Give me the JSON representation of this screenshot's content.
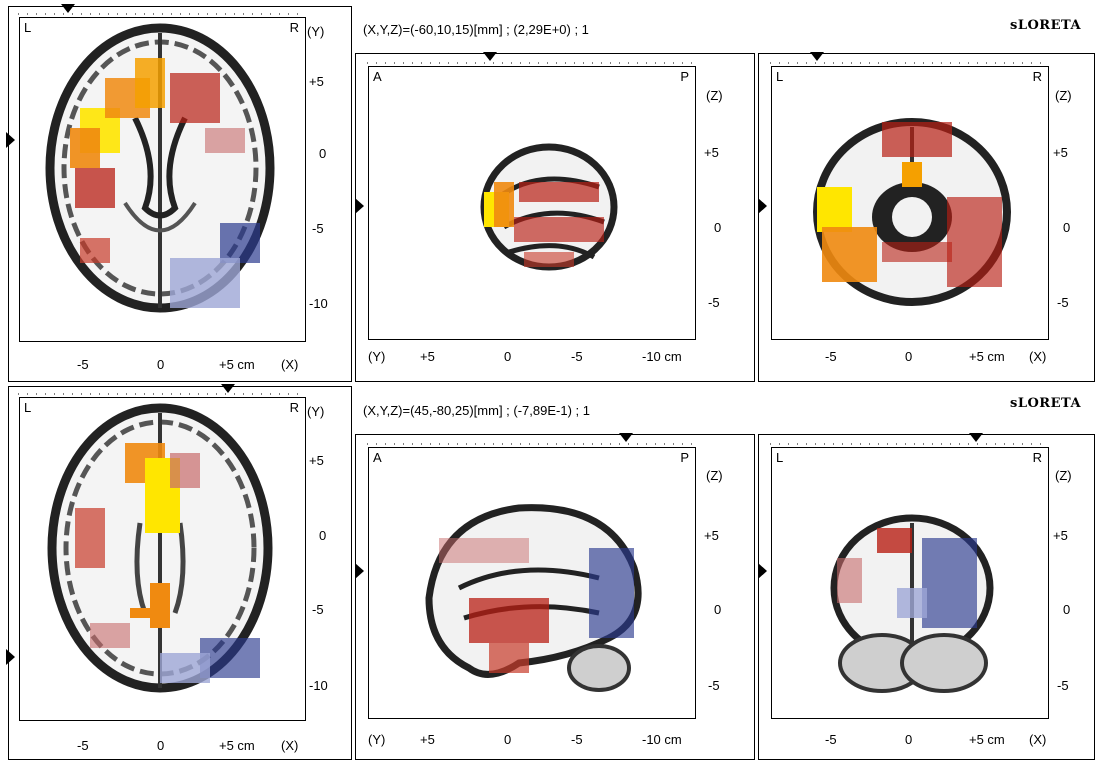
{
  "rows": [
    {
      "coord_readout": "(X,Y,Z)=(-60,10,15)[mm]  ;  (2,29E+0)  ;  1",
      "brand": "sLORETA",
      "axial": {
        "left": "L",
        "right": "R",
        "axis_y": "(Y)",
        "yticks": [
          "+5",
          "0",
          "-5",
          "-10"
        ],
        "xticks": [
          "-5",
          "0",
          "+5 cm"
        ],
        "axis_x": "(X)"
      },
      "sagittal": {
        "left": "A",
        "right": "P",
        "axis_z": "(Z)",
        "zticks": [
          "+5",
          "0",
          "-5"
        ],
        "axis_y": "(Y)",
        "xticks": [
          "+5",
          "0",
          "-5",
          "-10 cm"
        ]
      },
      "coronal": {
        "left": "L",
        "right": "R",
        "axis_z": "(Z)",
        "zticks": [
          "+5",
          "0",
          "-5"
        ],
        "xticks": [
          "-5",
          "0",
          "+5 cm"
        ],
        "axis_x": "(X)"
      }
    },
    {
      "coord_readout": "(X,Y,Z)=(45,-80,25)[mm]  ;  (-7,89E-1)  ;  1",
      "brand": "sLORETA",
      "axial": {
        "left": "L",
        "right": "R",
        "axis_y": "(Y)",
        "yticks": [
          "+5",
          "0",
          "-5",
          "-10"
        ],
        "xticks": [
          "-5",
          "0",
          "+5 cm"
        ],
        "axis_x": "(X)"
      },
      "sagittal": {
        "left": "A",
        "right": "P",
        "axis_z": "(Z)",
        "zticks": [
          "+5",
          "0",
          "-5"
        ],
        "axis_y": "(Y)",
        "xticks": [
          "+5",
          "0",
          "-5",
          "-10 cm"
        ]
      },
      "coronal": {
        "left": "L",
        "right": "R",
        "axis_z": "(Z)",
        "zticks": [
          "+5",
          "0",
          "-5"
        ],
        "xticks": [
          "-5",
          "0",
          "+5 cm"
        ],
        "axis_x": "(X)"
      }
    }
  ],
  "colors": {
    "hot_yellow": "#ffe600",
    "hot_orange": "#f08a10",
    "hot_red": "#b81f14",
    "cold_blue": "#2b3a8f",
    "cold_light": "#9ea6d6"
  }
}
